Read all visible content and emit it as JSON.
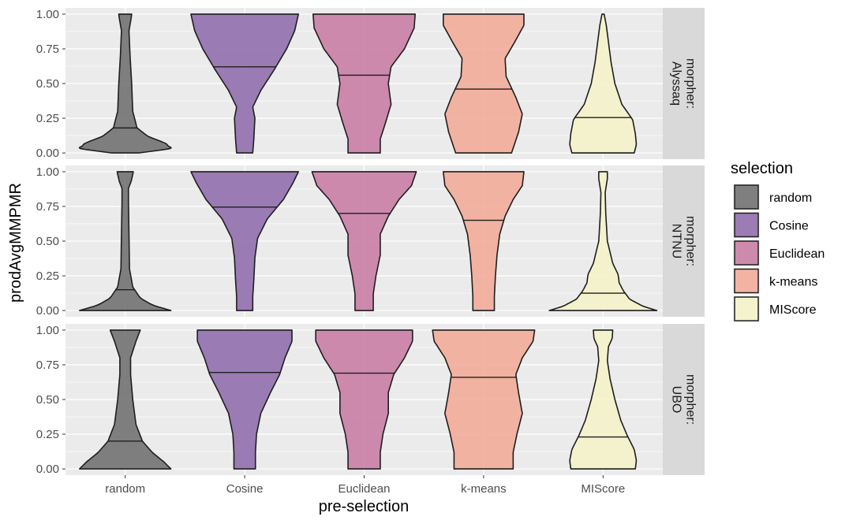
{
  "chart_data": {
    "type": "violin",
    "xlabel": "pre-selection",
    "ylabel": "prodAvgMMPMR",
    "ylim": [
      0,
      1
    ],
    "yticks": [
      "0.00",
      "0.25",
      "0.50",
      "0.75",
      "1.00"
    ],
    "categories": [
      "random",
      "Cosine",
      "Euclidean",
      "k-means",
      "MIScore"
    ],
    "colors": {
      "random": "#6e6e6e",
      "Cosine": "#8e6bab",
      "Euclidean": "#c77ba3",
      "k-means": "#f1aa97",
      "MIScore": "#f5f3c8"
    },
    "legend": {
      "title": "selection",
      "position": "right",
      "items": [
        "random",
        "Cosine",
        "Euclidean",
        "k-means",
        "MIScore"
      ]
    },
    "panels": [
      {
        "strip_line1": "morpher:",
        "strip_line2": "Alyssaq",
        "violins": [
          {
            "category": "random",
            "median": 0.18,
            "profile": [
              [
                0,
                0.25
              ],
              [
                0.03,
                0.85
              ],
              [
                0.07,
                0.75
              ],
              [
                0.12,
                0.42
              ],
              [
                0.18,
                0.22
              ],
              [
                0.3,
                0.14
              ],
              [
                0.5,
                0.12
              ],
              [
                0.7,
                0.09
              ],
              [
                0.88,
                0.07
              ],
              [
                0.97,
                0.11
              ],
              [
                1,
                0.12
              ]
            ]
          },
          {
            "category": "Cosine",
            "median": 0.62,
            "profile": [
              [
                0,
                0.15
              ],
              [
                0.1,
                0.17
              ],
              [
                0.25,
                0.19
              ],
              [
                0.33,
                0.15
              ],
              [
                0.45,
                0.3
              ],
              [
                0.6,
                0.55
              ],
              [
                0.75,
                0.78
              ],
              [
                0.88,
                0.93
              ],
              [
                1,
                1.0
              ]
            ]
          },
          {
            "category": "Euclidean",
            "median": 0.56,
            "profile": [
              [
                0,
                0.3
              ],
              [
                0.1,
                0.3
              ],
              [
                0.22,
                0.4
              ],
              [
                0.35,
                0.5
              ],
              [
                0.5,
                0.45
              ],
              [
                0.62,
                0.5
              ],
              [
                0.75,
                0.75
              ],
              [
                0.9,
                0.93
              ],
              [
                1,
                0.95
              ]
            ]
          },
          {
            "category": "k-means",
            "median": 0.46,
            "profile": [
              [
                0,
                0.52
              ],
              [
                0.15,
                0.65
              ],
              [
                0.28,
                0.72
              ],
              [
                0.4,
                0.6
              ],
              [
                0.55,
                0.42
              ],
              [
                0.68,
                0.4
              ],
              [
                0.8,
                0.58
              ],
              [
                0.92,
                0.75
              ],
              [
                1,
                0.75
              ]
            ]
          },
          {
            "category": "MIScore",
            "median": 0.255,
            "profile": [
              [
                0,
                0.58
              ],
              [
                0.06,
                0.62
              ],
              [
                0.14,
                0.6
              ],
              [
                0.24,
                0.55
              ],
              [
                0.35,
                0.35
              ],
              [
                0.5,
                0.22
              ],
              [
                0.65,
                0.15
              ],
              [
                0.8,
                0.1
              ],
              [
                0.92,
                0.06
              ],
              [
                1,
                0.02
              ]
            ]
          }
        ]
      },
      {
        "strip_line1": "morpher:",
        "strip_line2": "NTNU",
        "violins": [
          {
            "category": "random",
            "median": 0.15,
            "profile": [
              [
                0,
                0.85
              ],
              [
                0.04,
                0.5
              ],
              [
                0.09,
                0.28
              ],
              [
                0.17,
                0.14
              ],
              [
                0.3,
                0.08
              ],
              [
                0.55,
                0.07
              ],
              [
                0.78,
                0.06
              ],
              [
                0.88,
                0.06
              ],
              [
                0.93,
                0.11
              ],
              [
                0.98,
                0.14
              ],
              [
                1,
                0.15
              ]
            ]
          },
          {
            "category": "Cosine",
            "median": 0.745,
            "profile": [
              [
                0,
                0.15
              ],
              [
                0.1,
                0.15
              ],
              [
                0.22,
                0.17
              ],
              [
                0.38,
                0.19
              ],
              [
                0.52,
                0.24
              ],
              [
                0.66,
                0.42
              ],
              [
                0.8,
                0.72
              ],
              [
                0.92,
                0.9
              ],
              [
                1,
                1.0
              ]
            ]
          },
          {
            "category": "Euclidean",
            "median": 0.7,
            "profile": [
              [
                0,
                0.17
              ],
              [
                0.12,
                0.17
              ],
              [
                0.25,
                0.22
              ],
              [
                0.4,
                0.3
              ],
              [
                0.55,
                0.3
              ],
              [
                0.68,
                0.45
              ],
              [
                0.8,
                0.65
              ],
              [
                0.9,
                0.88
              ],
              [
                1,
                0.97
              ]
            ]
          },
          {
            "category": "k-means",
            "median": 0.65,
            "profile": [
              [
                0,
                0.2
              ],
              [
                0.1,
                0.2
              ],
              [
                0.25,
                0.22
              ],
              [
                0.4,
                0.25
              ],
              [
                0.55,
                0.3
              ],
              [
                0.68,
                0.4
              ],
              [
                0.8,
                0.55
              ],
              [
                0.9,
                0.72
              ],
              [
                1,
                0.75
              ]
            ]
          },
          {
            "category": "MIScore",
            "median": 0.125,
            "profile": [
              [
                0,
                1.0
              ],
              [
                0.03,
                0.75
              ],
              [
                0.08,
                0.5
              ],
              [
                0.14,
                0.38
              ],
              [
                0.2,
                0.3
              ],
              [
                0.26,
                0.28
              ],
              [
                0.34,
                0.18
              ],
              [
                0.5,
                0.08
              ],
              [
                0.7,
                0.05
              ],
              [
                0.85,
                0.04
              ],
              [
                0.95,
                0.08
              ],
              [
                1,
                0.08
              ]
            ]
          }
        ]
      },
      {
        "strip_line1": "morpher:",
        "strip_line2": "UBO",
        "violins": [
          {
            "category": "random",
            "median": 0.2,
            "profile": [
              [
                0,
                0.85
              ],
              [
                0.05,
                0.72
              ],
              [
                0.12,
                0.5
              ],
              [
                0.2,
                0.32
              ],
              [
                0.32,
                0.2
              ],
              [
                0.5,
                0.14
              ],
              [
                0.68,
                0.1
              ],
              [
                0.8,
                0.1
              ],
              [
                0.92,
                0.2
              ],
              [
                1,
                0.28
              ]
            ]
          },
          {
            "category": "Cosine",
            "median": 0.695,
            "profile": [
              [
                0,
                0.2
              ],
              [
                0.12,
                0.2
              ],
              [
                0.25,
                0.22
              ],
              [
                0.4,
                0.3
              ],
              [
                0.55,
                0.48
              ],
              [
                0.68,
                0.65
              ],
              [
                0.8,
                0.75
              ],
              [
                0.92,
                0.88
              ],
              [
                1,
                0.88
              ]
            ]
          },
          {
            "category": "Euclidean",
            "median": 0.69,
            "profile": [
              [
                0,
                0.3
              ],
              [
                0.12,
                0.3
              ],
              [
                0.25,
                0.35
              ],
              [
                0.4,
                0.45
              ],
              [
                0.55,
                0.45
              ],
              [
                0.68,
                0.55
              ],
              [
                0.8,
                0.75
              ],
              [
                0.92,
                0.9
              ],
              [
                1,
                0.9
              ]
            ]
          },
          {
            "category": "k-means",
            "median": 0.66,
            "profile": [
              [
                0,
                0.55
              ],
              [
                0.12,
                0.55
              ],
              [
                0.25,
                0.62
              ],
              [
                0.4,
                0.72
              ],
              [
                0.55,
                0.65
              ],
              [
                0.68,
                0.6
              ],
              [
                0.8,
                0.72
              ],
              [
                0.92,
                0.92
              ],
              [
                1,
                0.95
              ]
            ]
          },
          {
            "category": "MIScore",
            "median": 0.23,
            "profile": [
              [
                0,
                0.6
              ],
              [
                0.06,
                0.62
              ],
              [
                0.14,
                0.58
              ],
              [
                0.24,
                0.45
              ],
              [
                0.35,
                0.33
              ],
              [
                0.5,
                0.22
              ],
              [
                0.65,
                0.13
              ],
              [
                0.78,
                0.08
              ],
              [
                0.88,
                0.1
              ],
              [
                0.94,
                0.17
              ],
              [
                1,
                0.18
              ]
            ]
          }
        ]
      }
    ]
  }
}
